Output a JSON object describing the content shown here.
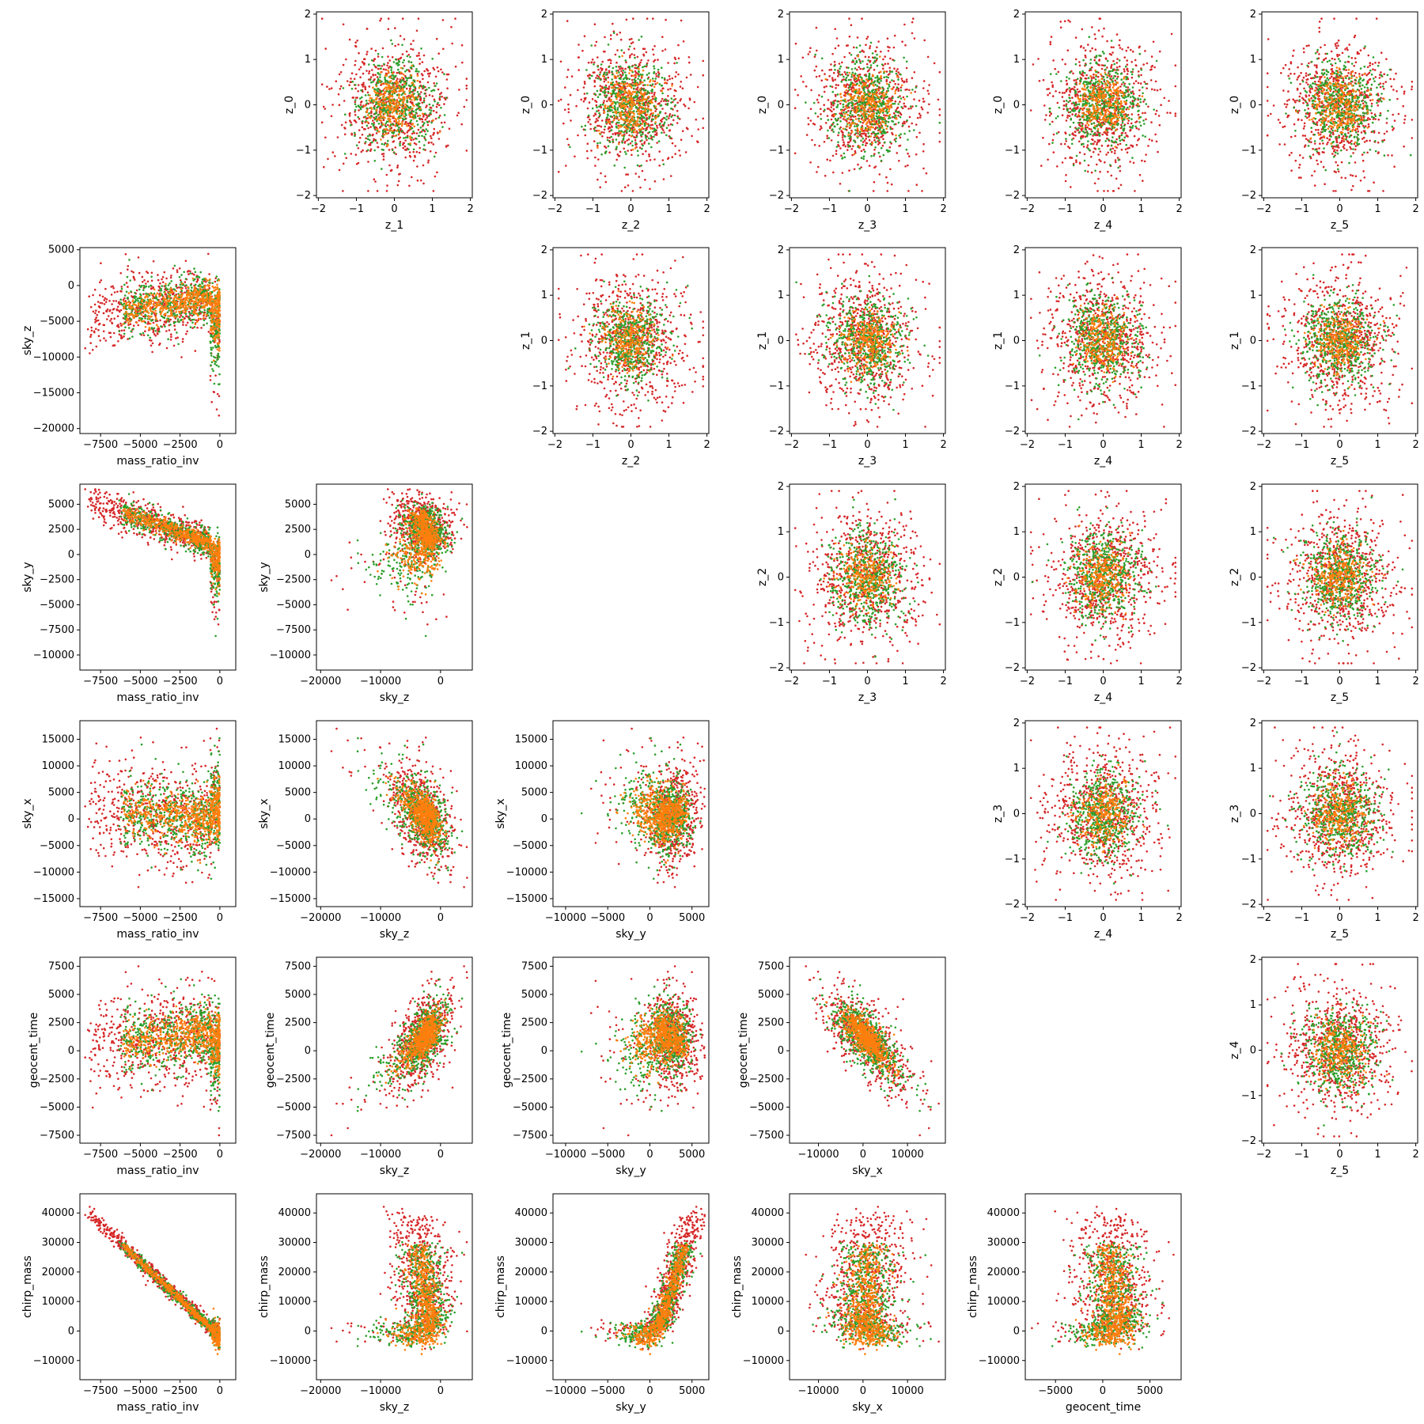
{
  "chart_data": {
    "type": "scatter",
    "layout": "pair-plot",
    "series_colors": [
      "#d62728",
      "#2ca02c",
      "#ff7f0e"
    ],
    "variables": [
      "mass_ratio_inv",
      "sky_z",
      "sky_y",
      "sky_x",
      "geocent_time",
      "chirp_mass"
    ],
    "latent_variables": [
      "z_0",
      "z_1",
      "z_2",
      "z_3",
      "z_4",
      "z_5"
    ],
    "axis_ranges": {
      "mass_ratio_inv": [
        -8800,
        1000
      ],
      "sky_z": [
        -20700,
        5300
      ],
      "sky_y": [
        -11500,
        7000
      ],
      "sky_x": [
        -16500,
        18500
      ],
      "geocent_time": [
        -8200,
        8300
      ],
      "chirp_mass": [
        -16500,
        46500
      ],
      "z": [
        -2.05,
        2.05
      ]
    },
    "ticks": {
      "mass_ratio_inv": [
        -7500,
        -5000,
        -2500,
        0
      ],
      "sky_z": [
        -20000,
        -10000,
        0
      ],
      "sky_y": [
        -10000,
        -5000,
        0,
        5000
      ],
      "sky_x": [
        -10000,
        0,
        10000
      ],
      "geocent_time": [
        -5000,
        0,
        5000
      ],
      "chirp_mass": [
        -10000,
        0,
        10000,
        20000,
        30000,
        40000
      ],
      "z": [
        -2,
        -1,
        0,
        1,
        2
      ]
    },
    "y_ticks": {
      "sky_z": [
        -20000,
        -15000,
        -10000,
        -5000,
        0,
        5000
      ],
      "sky_y": [
        -10000,
        -7500,
        -5000,
        -2500,
        0,
        2500,
        5000
      ],
      "sky_x": [
        -15000,
        -10000,
        -5000,
        0,
        5000,
        10000,
        15000
      ],
      "geocent_time": [
        -7500,
        -5000,
        -2500,
        0,
        2500,
        5000,
        7500
      ],
      "chirp_mass": [
        -10000,
        0,
        10000,
        20000,
        30000,
        40000
      ],
      "z": [
        -2,
        -1,
        0,
        1,
        2
      ]
    },
    "lower_panels": [
      {
        "row": 1,
        "col": 0,
        "x": "mass_ratio_inv",
        "y": "sky_z"
      },
      {
        "row": 2,
        "col": 0,
        "x": "mass_ratio_inv",
        "y": "sky_y"
      },
      {
        "row": 2,
        "col": 1,
        "x": "sky_z",
        "y": "sky_y"
      },
      {
        "row": 3,
        "col": 0,
        "x": "mass_ratio_inv",
        "y": "sky_x"
      },
      {
        "row": 3,
        "col": 1,
        "x": "sky_z",
        "y": "sky_x"
      },
      {
        "row": 3,
        "col": 2,
        "x": "sky_y",
        "y": "sky_x"
      },
      {
        "row": 4,
        "col": 0,
        "x": "mass_ratio_inv",
        "y": "geocent_time"
      },
      {
        "row": 4,
        "col": 1,
        "x": "sky_z",
        "y": "geocent_time"
      },
      {
        "row": 4,
        "col": 2,
        "x": "sky_y",
        "y": "geocent_time"
      },
      {
        "row": 4,
        "col": 3,
        "x": "sky_x",
        "y": "geocent_time"
      },
      {
        "row": 5,
        "col": 0,
        "x": "mass_ratio_inv",
        "y": "chirp_mass"
      },
      {
        "row": 5,
        "col": 1,
        "x": "sky_z",
        "y": "chirp_mass"
      },
      {
        "row": 5,
        "col": 2,
        "x": "sky_y",
        "y": "chirp_mass"
      },
      {
        "row": 5,
        "col": 3,
        "x": "sky_x",
        "y": "chirp_mass"
      },
      {
        "row": 5,
        "col": 4,
        "x": "geocent_time",
        "y": "chirp_mass"
      }
    ],
    "upper_panels": [
      {
        "row": 0,
        "col": 1,
        "x": "z_1",
        "y": "z_0"
      },
      {
        "row": 0,
        "col": 2,
        "x": "z_2",
        "y": "z_0"
      },
      {
        "row": 0,
        "col": 3,
        "x": "z_3",
        "y": "z_0"
      },
      {
        "row": 0,
        "col": 4,
        "x": "z_4",
        "y": "z_0"
      },
      {
        "row": 0,
        "col": 5,
        "x": "z_5",
        "y": "z_0"
      },
      {
        "row": 1,
        "col": 2,
        "x": "z_2",
        "y": "z_1"
      },
      {
        "row": 1,
        "col": 3,
        "x": "z_3",
        "y": "z_1"
      },
      {
        "row": 1,
        "col": 4,
        "x": "z_4",
        "y": "z_1"
      },
      {
        "row": 1,
        "col": 5,
        "x": "z_5",
        "y": "z_1"
      },
      {
        "row": 2,
        "col": 3,
        "x": "z_3",
        "y": "z_2"
      },
      {
        "row": 2,
        "col": 4,
        "x": "z_4",
        "y": "z_2"
      },
      {
        "row": 2,
        "col": 5,
        "x": "z_5",
        "y": "z_2"
      },
      {
        "row": 3,
        "col": 4,
        "x": "z_4",
        "y": "z_3"
      },
      {
        "row": 3,
        "col": 5,
        "x": "z_5",
        "y": "z_3"
      },
      {
        "row": 4,
        "col": 5,
        "x": "z_5",
        "y": "z_4"
      }
    ],
    "approx_points_per_series": 600,
    "grid": false,
    "legend": "none"
  }
}
